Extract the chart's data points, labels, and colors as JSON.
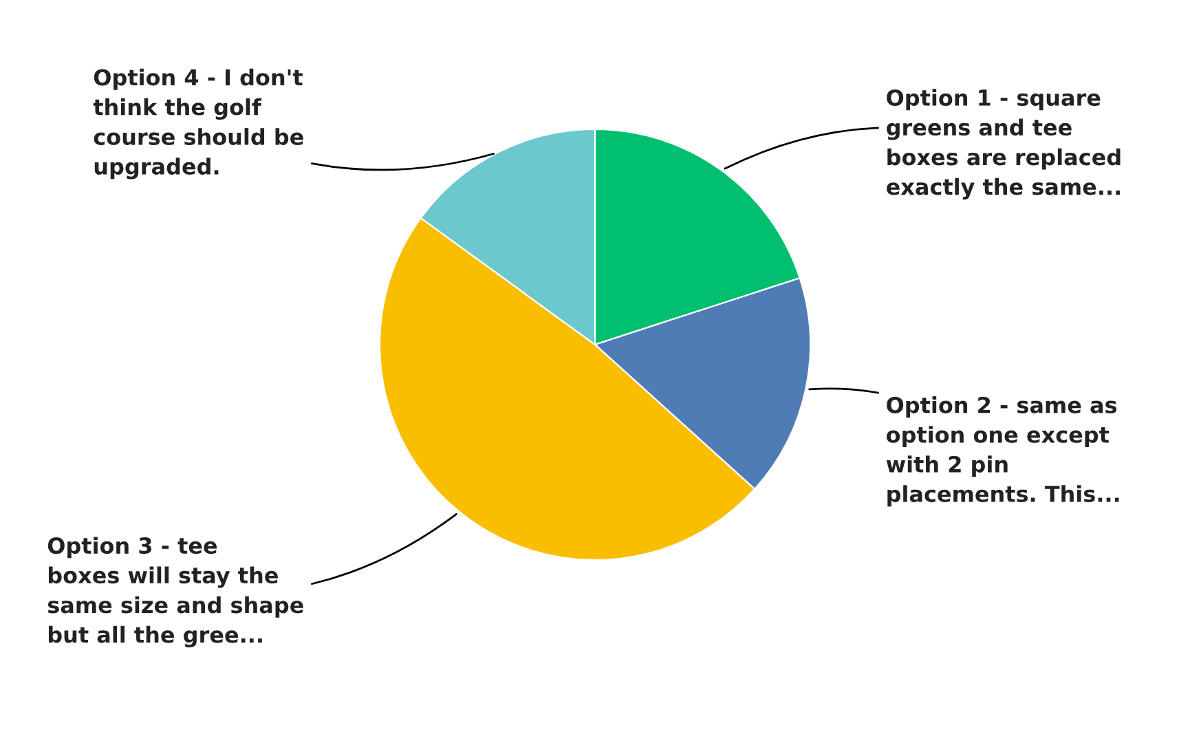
{
  "chart_data": {
    "type": "pie",
    "categories": [
      "Option 1 - square\ngreens and tee\nboxes are replaced\nexactly the same...",
      "Option 2 - same as\noption one except\nwith 2 pin\nplacements. This...",
      "Option 3 - tee\nboxes will stay the\nsame size and shape\nbut all the gree...",
      "Option 4 - I don't\nthink the golf\ncourse should be\nupgraded."
    ],
    "values": [
      20,
      16.7,
      48.3,
      15
    ],
    "colors": [
      "#00bf6f",
      "#507cb6",
      "#f9be00",
      "#6bc8cd"
    ],
    "legend": false
  }
}
